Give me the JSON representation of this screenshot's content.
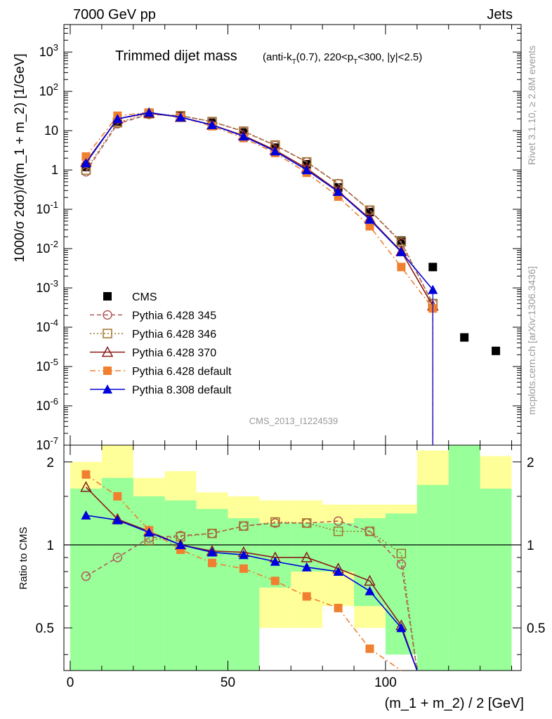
{
  "header": {
    "left": "7000 GeV pp",
    "right": "Jets"
  },
  "plot": {
    "title_main": "Trimmed dijet mass",
    "title_sub_parts": [
      "(anti-k",
      "T",
      "(0.7), 220<p",
      "T",
      "<300, |y|<2.5)"
    ],
    "ylabel_top": "1000/σ 2dσ)/d(m_1 + m_2) [1/GeV]",
    "ylabel_bottom": "Ratio to CMS",
    "xlabel": "(m_1 + m_2) / 2 [GeV]",
    "watermark": "CMS_2013_I1224539",
    "side_top": "Rivet 3.1.10, ≥ 2.8M events",
    "side_bottom": "mcplots.cern.ch [arXiv:1306.3436]"
  },
  "legend": [
    {
      "label": "CMS",
      "color": "#000000",
      "marker": "square-filled",
      "line": "none"
    },
    {
      "label": "Pythia 6.428 345",
      "color": "#b05a5a",
      "marker": "circle-open",
      "line": "dashed"
    },
    {
      "label": "Pythia 6.428 346",
      "color": "#a0742a",
      "marker": "square-open",
      "line": "dotted"
    },
    {
      "label": "Pythia 6.428 370",
      "color": "#8b1a1a",
      "marker": "triangle-open",
      "line": "solid"
    },
    {
      "label": "Pythia 6.428 default",
      "color": "#f08030",
      "marker": "square-filled",
      "line": "dashdot"
    },
    {
      "label": "Pythia 8.308 default",
      "color": "#0000dd",
      "marker": "triangle-filled",
      "line": "solid"
    }
  ],
  "chart_data": [
    {
      "type": "scatter",
      "scale": "log",
      "ylim": [
        1e-07,
        5000
      ],
      "xlim": [
        -2,
        143
      ],
      "yticks": [
        "10^-7",
        "10^-6",
        "10^-5",
        "10^-4",
        "10^-3",
        "10^-2",
        "10^-1",
        "1",
        "10",
        "10^2",
        "10^3"
      ],
      "x": [
        5,
        15,
        25,
        35,
        45,
        55,
        65,
        75,
        85,
        95,
        105,
        115,
        125,
        135
      ],
      "series": [
        {
          "name": "CMS",
          "values": [
            1.2,
            17,
            28,
            24,
            16,
            9,
            3.7,
            1.4,
            0.36,
            0.085,
            0.016,
            0.0034,
            5.5e-05,
            2.5e-05
          ]
        },
        {
          "name": "Pythia 6.428 345",
          "values": [
            0.9,
            15,
            26,
            24,
            17,
            9.5,
            4.2,
            1.6,
            0.45,
            0.095,
            0.014,
            0.0004
          ]
        },
        {
          "name": "Pythia 6.428 346",
          "values": [
            1.0,
            16,
            27,
            24,
            17,
            9.7,
            4.3,
            1.6,
            0.44,
            0.095,
            0.015,
            0.0004
          ]
        },
        {
          "name": "Pythia 6.428 370",
          "values": [
            1.6,
            20,
            28,
            22,
            14,
            7.5,
            3.2,
            1.1,
            0.29,
            0.058,
            0.0085,
            0.00035
          ]
        },
        {
          "name": "Pythia 6.428 default",
          "values": [
            2.2,
            24,
            29,
            22,
            13,
            6.5,
            2.7,
            0.85,
            0.21,
            0.037,
            0.0034,
            0.0003
          ]
        },
        {
          "name": "Pythia 8.308 default",
          "values": [
            1.5,
            20,
            29,
            22,
            14,
            7.2,
            3.0,
            1.0,
            0.28,
            0.055,
            0.0082,
            0.0009
          ]
        }
      ]
    },
    {
      "type": "line",
      "scale": "log",
      "ylim": [
        0.35,
        2.3
      ],
      "yticks": [
        "0.5",
        "1",
        "2"
      ],
      "xticks": [
        "0",
        "50",
        "100"
      ],
      "reference": 1,
      "bands": {
        "edges": [
          0,
          10,
          20,
          30,
          40,
          50,
          60,
          70,
          80,
          90,
          100,
          110,
          120,
          130,
          140
        ],
        "yellow": [
          [
            0.3,
            2.0
          ],
          [
            0.3,
            3.0
          ],
          [
            0.3,
            1.75
          ],
          [
            0.3,
            1.85
          ],
          [
            0.3,
            1.55
          ],
          [
            0.55,
            1.5
          ],
          [
            0.5,
            1.45
          ],
          [
            0.5,
            1.45
          ],
          [
            0.6,
            1.4
          ],
          [
            0.5,
            1.4
          ],
          [
            0.55,
            1.4
          ],
          [
            0.5,
            2.2
          ],
          [
            0.3,
            2.6
          ],
          [
            0.3,
            2.1
          ]
        ],
        "green": [
          [
            0.3,
            1.6
          ],
          [
            0.3,
            1.75
          ],
          [
            0.3,
            1.5
          ],
          [
            0.3,
            1.45
          ],
          [
            0.3,
            1.35
          ],
          [
            0.3,
            1.25
          ],
          [
            0.7,
            1.2
          ],
          [
            0.8,
            1.2
          ],
          [
            0.8,
            1.2
          ],
          [
            0.6,
            1.25
          ],
          [
            0.4,
            1.3
          ],
          [
            0.3,
            1.65
          ],
          [
            0.3,
            2.6
          ],
          [
            0.3,
            1.6
          ]
        ]
      },
      "x": [
        5,
        15,
        25,
        35,
        45,
        55,
        65,
        75,
        85,
        95,
        105,
        110
      ],
      "series": [
        {
          "name": "Pythia 6.428 345",
          "values": [
            0.77,
            0.9,
            1.06,
            1.08,
            1.1,
            1.17,
            1.2,
            1.2,
            1.22,
            1.12,
            0.85,
            0.28
          ]
        },
        {
          "name": "Pythia 6.428 346",
          "values": [
            null,
            null,
            1.04,
            1.07,
            1.1,
            1.17,
            1.21,
            1.2,
            1.12,
            1.12,
            0.93,
            0.3
          ]
        },
        {
          "name": "Pythia 6.428 370",
          "values": [
            1.62,
            1.24,
            1.12,
            1.0,
            0.95,
            0.94,
            0.9,
            0.9,
            0.82,
            0.74,
            0.51,
            0.3
          ]
        },
        {
          "name": "Pythia 6.428 default",
          "values": [
            1.8,
            1.5,
            1.13,
            0.96,
            0.86,
            0.82,
            0.74,
            0.65,
            0.59,
            0.42,
            0.3,
            null
          ]
        },
        {
          "name": "Pythia 8.308 default",
          "values": [
            1.28,
            1.23,
            1.11,
            1.0,
            0.94,
            0.92,
            0.87,
            0.83,
            0.8,
            0.68,
            0.5,
            0.3
          ]
        }
      ]
    }
  ]
}
